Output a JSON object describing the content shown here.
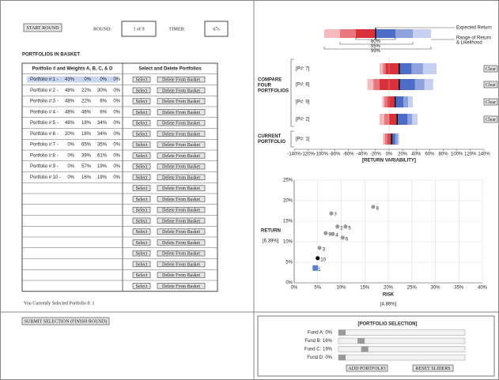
{
  "header": {
    "start_button": "START ROUND",
    "round_label": "ROUND:",
    "round_value": "1 of 9",
    "timer_label": "TIMER:",
    "timer_value": "67s"
  },
  "basket": {
    "title": "PORTFOLIOS IN BASKET",
    "columns": [
      "Portfolio # and Weights A, B, C, & D",
      "Select and Delete Portfolios"
    ],
    "select_button": "Select",
    "delete_button": "Delete From Basket",
    "rows": [
      {
        "label": "Portfolio #:1 -",
        "weights": [
          "43%",
          "0%",
          "0%",
          "0%"
        ]
      },
      {
        "label": "Portfolio #:2 -",
        "weights": [
          "48%",
          "22%",
          "30%",
          "0%"
        ]
      },
      {
        "label": "Portfolio #:3 -",
        "weights": [
          "48%",
          "22%",
          "6%",
          "0%"
        ]
      },
      {
        "label": "Portfolio #:4 -",
        "weights": [
          "48%",
          "46%",
          "6%",
          "0%"
        ]
      },
      {
        "label": "Portfolio #:5 -",
        "weights": [
          "48%",
          "18%",
          "34%",
          "0%"
        ]
      },
      {
        "label": "Portfolio #:6 -",
        "weights": [
          "20%",
          "18%",
          "34%",
          "0%"
        ]
      },
      {
        "label": "Portfolio #:7 -",
        "weights": [
          "0%",
          "65%",
          "35%",
          "0%"
        ]
      },
      {
        "label": "Portfolio #:8 -",
        "weights": [
          "0%",
          "39%",
          "61%",
          "0%"
        ]
      },
      {
        "label": "Portfolio #:9 -",
        "weights": [
          "0%",
          "57%",
          "19%",
          "0%"
        ]
      },
      {
        "label": "Portfolio #:10 -",
        "weights": [
          "0%",
          "16%",
          "19%",
          "0%"
        ]
      }
    ],
    "blank_rows": 10,
    "selected_text": "You Currently Selected Portfolio #: 1",
    "submit_button": "SUBMIT SELECTION (FINISH ROUND)"
  },
  "chart_data": [
    {
      "type": "range",
      "xlabel": "[RETURN VARIABILITY]",
      "xlim": [
        -140,
        140
      ],
      "xticks": [
        {
          "value": -140,
          "label": "-140%"
        },
        {
          "value": -120,
          "label": "-120%"
        },
        {
          "value": -100,
          "label": "-100%"
        },
        {
          "value": -80,
          "label": "-80%"
        },
        {
          "value": -60,
          "label": "-60%"
        },
        {
          "value": -40,
          "label": "-40%"
        },
        {
          "value": -20,
          "label": "-20%"
        },
        {
          "value": 0,
          "label": "0%"
        },
        {
          "value": 20,
          "label": "20%"
        },
        {
          "value": 40,
          "label": "40%"
        },
        {
          "value": 60,
          "label": "60%"
        },
        {
          "value": 80,
          "label": "80%"
        },
        {
          "value": 100,
          "label": "100%"
        },
        {
          "value": 120,
          "label": "120%"
        },
        {
          "value": 140,
          "label": "140%"
        }
      ],
      "colors_below": [
        "#d9303a",
        "#e9767c",
        "#f4babd"
      ],
      "colors_above": [
        "#4d6cc8",
        "#8ea2dc",
        "#c6d0f0"
      ],
      "legend": {
        "expected": "Expected Return",
        "range": [
          "Range of Return",
          "& Likelihood"
        ],
        "levels": [
          "60%",
          "95%",
          "99%"
        ]
      },
      "groups": [
        {
          "lines": [
            "COMPARE",
            "FOUR",
            "PORTFOLIOS"
          ]
        },
        {
          "lines": [
            "CURRENT",
            "PORTFOLIO"
          ]
        }
      ],
      "clear_button": "Clear",
      "series": [
        {
          "name": "[P#: 7]",
          "expected": 15,
          "ranges": [
            [
              -5,
              33
            ],
            [
              -9,
              50
            ],
            [
              -14,
              70
            ]
          ]
        },
        {
          "name": "[P#: 8]",
          "expected": 15,
          "ranges": [
            [
              -14,
              38
            ],
            [
              -23,
              52
            ],
            [
              -32,
              65
            ]
          ]
        },
        {
          "name": "[P#: 9]",
          "expected": 9,
          "ranges": [
            [
              -2,
              21
            ],
            [
              -7,
              28
            ],
            [
              -10,
              35
            ]
          ]
        },
        {
          "name": "[P#: 2]",
          "expected": 12,
          "ranges": [
            [
              0,
              27
            ],
            [
              -7,
              34
            ],
            [
              -14,
              42
            ]
          ]
        },
        {
          "name": "[P#: 1]",
          "expected": 4,
          "ranges": [
            [
              -2,
              9
            ],
            [
              -6,
              13
            ],
            [
              -9,
              15
            ]
          ]
        }
      ]
    },
    {
      "type": "scatter",
      "xlabel": "RISK",
      "xlabel_value": "[4.86%]",
      "ylabel": "RETURN",
      "ylabel_value": "[6.39%]",
      "xlim": [
        0,
        40
      ],
      "ylim": [
        0,
        25
      ],
      "grid": true,
      "xticks": [
        {
          "value": 0,
          "label": "0%"
        },
        {
          "value": 5,
          "label": "5%"
        },
        {
          "value": 10,
          "label": "10%"
        },
        {
          "value": 15,
          "label": "15%"
        },
        {
          "value": 20,
          "label": "20%"
        },
        {
          "value": 25,
          "label": "25%"
        },
        {
          "value": 30,
          "label": "30%"
        },
        {
          "value": 35,
          "label": "35%"
        },
        {
          "value": 40,
          "label": "40%"
        }
      ],
      "yticks": [
        {
          "value": 0,
          "label": "0%"
        },
        {
          "value": 5,
          "label": "5%"
        },
        {
          "value": 10,
          "label": "10%"
        },
        {
          "value": 15,
          "label": "15%"
        },
        {
          "value": 20,
          "label": "20%"
        },
        {
          "value": 25,
          "label": "25%"
        }
      ],
      "point_labels": [
        "1",
        "2",
        "3",
        "4",
        "5",
        "6",
        "7",
        "8",
        "9",
        "10"
      ],
      "x": [
        4.5,
        9.2,
        5.4,
        8.2,
        10.9,
        10.3,
        7.9,
        16.8,
        6.7,
        5.0
      ],
      "y": [
        3.6,
        13.7,
        8.5,
        11.9,
        13.7,
        11.0,
        16.9,
        18.5,
        12.1,
        6.0
      ],
      "colors": [
        "#5b7fd6",
        "#999999",
        "#999999",
        "#999999",
        "#999999",
        "#999999",
        "#999999",
        "#999999",
        "#999999",
        "#000000"
      ]
    }
  ],
  "selection": {
    "title": "[PORTFOLIO SELECTION]",
    "sliders": [
      {
        "label": "Fund A: 0%",
        "value": 0
      },
      {
        "label": "Fund B: 16%",
        "value": 16
      },
      {
        "label": "Fund C: 19%",
        "value": 19
      },
      {
        "label": "Fund D: 0%",
        "value": 0
      }
    ],
    "add_button": "ADD PORTFOLIO",
    "reset_button": "RESET SLIDERS"
  }
}
